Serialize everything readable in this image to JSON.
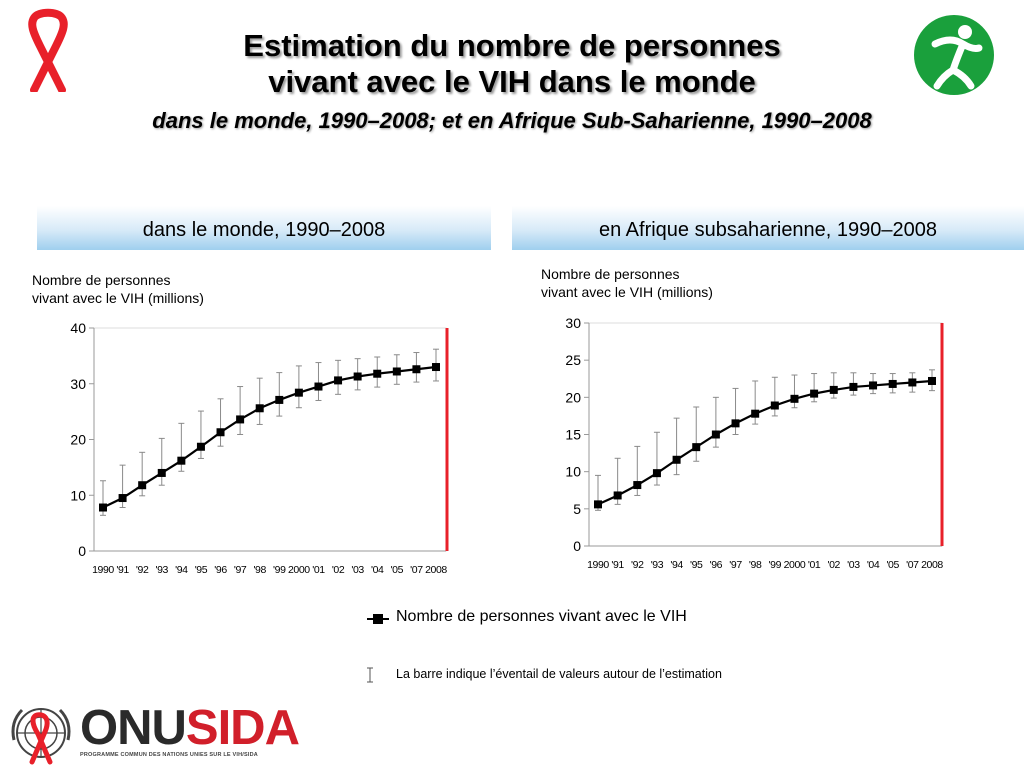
{
  "title": {
    "line1": "Estimation du nombre de personnes",
    "line2": "vivant avec le VIH dans le monde",
    "subtitle": "dans le monde, 1990–2008; et en Afrique Sub-Saharienne, 1990–2008"
  },
  "branding": {
    "logo_text_1": "ONU",
    "logo_text_2": "SIDA",
    "logo_sub": "PROGRAMME COMMUN DES NATIONS UNIES SUR LE VIH/SIDA",
    "ribbon_color": "#e8202a",
    "green_color": "#1aa03c"
  },
  "legend": {
    "series_label": "Nombre de personnes vivant avec le VIH",
    "bar_label": "La barre indique l’éventail de valeurs autour de l’estimation"
  },
  "chart_data": [
    {
      "type": "line",
      "title": "dans le monde, 1990–2008",
      "ylabel_line1": "Nombre de personnes",
      "ylabel_line2": "vivant avec le VIH (millions)",
      "xlabel": "",
      "ylim": [
        0,
        40
      ],
      "yticks": [
        0,
        10,
        20,
        30,
        40
      ],
      "x": [
        "1990",
        "'91",
        "'92",
        "'93",
        "'94",
        "'95",
        "'96",
        "'97",
        "'98",
        "'99",
        "2000",
        "'01",
        "'02",
        "'03",
        "'04",
        "'05",
        "'07",
        "2008"
      ],
      "series": [
        {
          "name": "Nombre de personnes vivant avec le VIH",
          "values": [
            7.8,
            9.5,
            11.8,
            14.0,
            16.2,
            18.7,
            21.3,
            23.6,
            25.6,
            27.1,
            28.4,
            29.5,
            30.6,
            31.3,
            31.8,
            32.2,
            32.6,
            33.0
          ],
          "low": [
            6.4,
            7.8,
            9.9,
            11.8,
            14.3,
            16.6,
            18.8,
            20.9,
            22.7,
            24.2,
            25.7,
            27.0,
            28.1,
            28.9,
            29.4,
            29.9,
            30.3,
            30.5
          ],
          "high": [
            12.6,
            15.4,
            17.7,
            20.2,
            22.9,
            25.1,
            27.3,
            29.5,
            31.0,
            32.0,
            33.2,
            33.8,
            34.2,
            34.5,
            34.8,
            35.2,
            35.6,
            36.2
          ]
        }
      ]
    },
    {
      "type": "line",
      "title": "en Afrique subsaharienne, 1990–2008",
      "ylabel_line1": "Nombre de personnes",
      "ylabel_line2": "vivant avec le VIH (millions)",
      "xlabel": "",
      "ylim": [
        0,
        30
      ],
      "yticks": [
        0,
        5,
        10,
        15,
        20,
        25,
        30
      ],
      "x": [
        "1990",
        "'91",
        "'92",
        "'93",
        "'94",
        "'95",
        "'96",
        "'97",
        "'98",
        "'99",
        "2000",
        "'01",
        "'02",
        "'03",
        "'04",
        "'05",
        "'07",
        "2008"
      ],
      "series": [
        {
          "name": "Nombre de personnes vivant avec le VIH",
          "values": [
            5.6,
            6.8,
            8.2,
            9.8,
            11.6,
            13.3,
            15.0,
            16.5,
            17.8,
            18.9,
            19.8,
            20.5,
            21.0,
            21.4,
            21.6,
            21.8,
            22.0,
            22.2
          ],
          "low": [
            4.8,
            5.6,
            6.8,
            8.2,
            9.6,
            11.4,
            13.3,
            15.0,
            16.4,
            17.5,
            18.6,
            19.4,
            19.9,
            20.3,
            20.5,
            20.6,
            20.7,
            20.9
          ],
          "high": [
            9.5,
            11.8,
            13.4,
            15.3,
            17.2,
            18.7,
            20.0,
            21.2,
            22.2,
            22.7,
            23.0,
            23.2,
            23.3,
            23.3,
            23.2,
            23.2,
            23.3,
            23.7
          ]
        }
      ]
    }
  ]
}
